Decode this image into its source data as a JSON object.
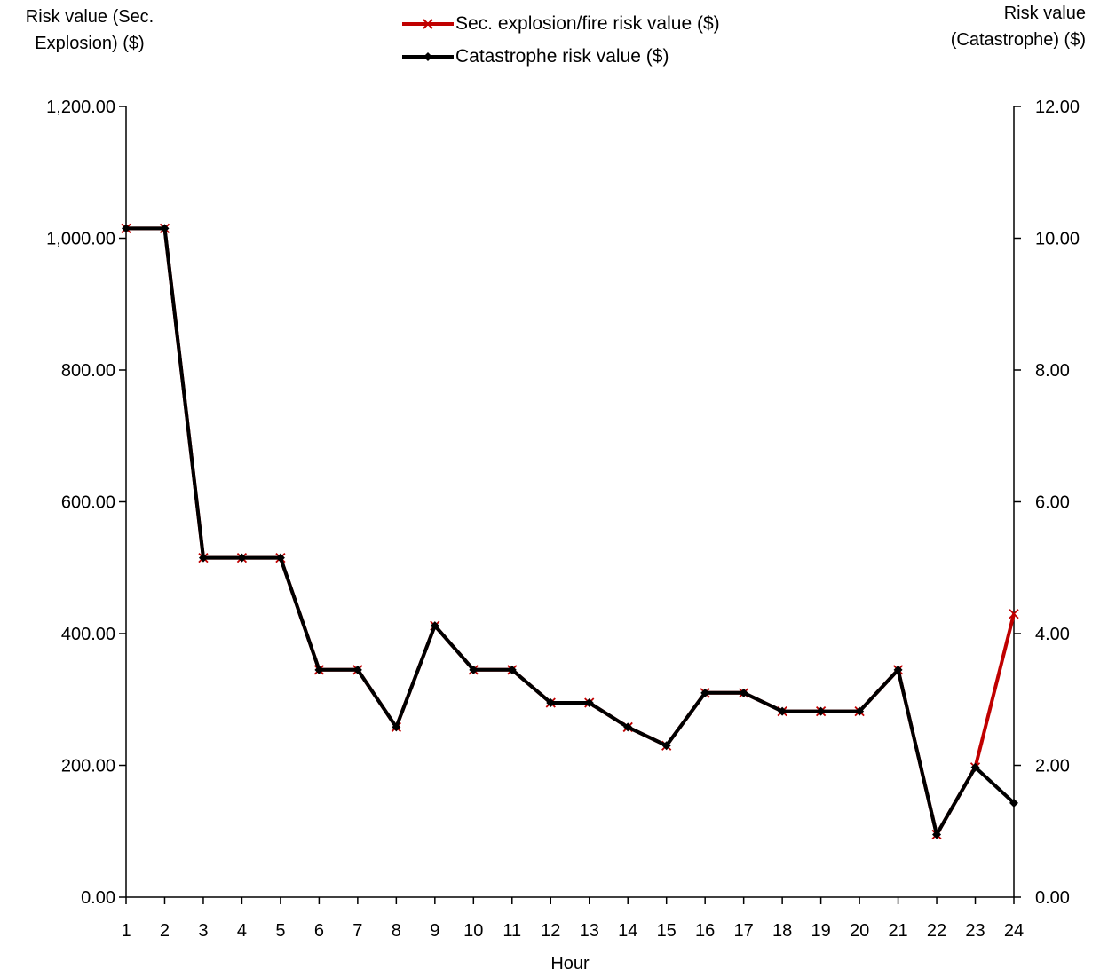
{
  "chart_data": {
    "type": "line",
    "title": "",
    "xlabel": "Hour",
    "ylabel_left_lines": [
      "Risk value (Sec.",
      "Explosion) ($)"
    ],
    "ylabel_right_lines": [
      "Risk value",
      "(Catastrophe) ($)"
    ],
    "categories": [
      "1",
      "2",
      "3",
      "4",
      "5",
      "6",
      "7",
      "8",
      "9",
      "10",
      "11",
      "12",
      "13",
      "14",
      "15",
      "16",
      "17",
      "18",
      "19",
      "20",
      "21",
      "22",
      "23",
      "24"
    ],
    "y_left": {
      "lim": [
        0,
        1200
      ],
      "ticks": [
        0,
        200,
        400,
        600,
        800,
        1000,
        1200
      ],
      "tick_labels": [
        "0.00",
        "200.00",
        "400.00",
        "600.00",
        "800.00",
        "1,000.00",
        "1,200.00"
      ]
    },
    "y_right": {
      "lim": [
        0,
        12
      ],
      "ticks": [
        0,
        2,
        4,
        6,
        8,
        10,
        12
      ],
      "tick_labels": [
        "0.00",
        "2.00",
        "4.00",
        "6.00",
        "8.00",
        "10.00",
        "12.00"
      ]
    },
    "legend_placement": "top-center",
    "grid": false,
    "series": [
      {
        "name": "Sec. explosion/fire risk value ($)",
        "axis": "left",
        "color": "#c00000",
        "marker": "x",
        "values": [
          1015,
          1015,
          515,
          515,
          515,
          345,
          345,
          258,
          412,
          345,
          345,
          295,
          295,
          258,
          230,
          310,
          310,
          282,
          282,
          282,
          345,
          95,
          197,
          430
        ]
      },
      {
        "name": "Catastrophe risk value ($)",
        "axis": "right",
        "color": "#000000",
        "marker": "diamond",
        "values": [
          10.15,
          10.15,
          5.15,
          5.15,
          5.15,
          3.45,
          3.45,
          2.58,
          4.12,
          3.45,
          3.45,
          2.95,
          2.95,
          2.58,
          2.3,
          3.1,
          3.1,
          2.82,
          2.82,
          2.82,
          3.45,
          0.95,
          1.97,
          1.43
        ]
      }
    ]
  }
}
